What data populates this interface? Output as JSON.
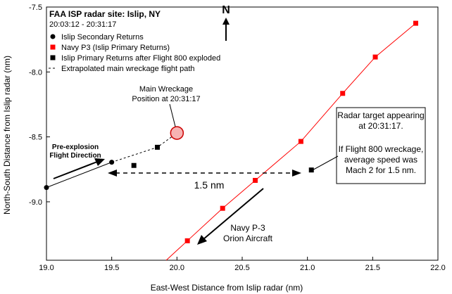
{
  "chart_data": {
    "type": "scatter",
    "title": "FAA ISP radar site: Islip, NY",
    "time_range": "20:03:12 - 20:31:17",
    "xlabel": "East-West Distance from Islip radar (nm)",
    "ylabel": "North-South Distance from Islip radar (nm)",
    "xlim": [
      19.0,
      22.0
    ],
    "ylim": [
      -9.45,
      -7.5
    ],
    "x_ticks": [
      "19.0",
      "19.5",
      "20.0",
      "20.5",
      "21.0",
      "21.5",
      "22.0"
    ],
    "y_ticks": [
      "-7.5",
      "-8.0",
      "-8.5",
      "-9.0"
    ],
    "grid": false,
    "legend_position": "top-left",
    "legend": [
      {
        "label": "Islip Secondary Returns",
        "marker": "circle",
        "color": "#000000"
      },
      {
        "label": "Navy P3 (Islip Primary Returns)",
        "marker": "square",
        "color": "#ff0000"
      },
      {
        "label": "Islip Primary Returns after Flight 800 exploded",
        "marker": "square",
        "color": "#000000"
      },
      {
        "label": "Extrapolated main wreckage flight path",
        "marker": "dashed-line",
        "color": "#000000"
      }
    ],
    "series": [
      {
        "name": "Islip Secondary Returns",
        "color": "#000000",
        "marker": "circle",
        "points": [
          [
            19.0,
            -8.89
          ],
          [
            19.5,
            -8.695
          ]
        ]
      },
      {
        "name": "Navy P3 (Islip Primary Returns)",
        "color": "#ff0000",
        "marker": "square",
        "line": true,
        "points": [
          [
            20.08,
            -9.3
          ],
          [
            20.35,
            -9.05
          ],
          [
            20.6,
            -8.835
          ],
          [
            20.95,
            -8.535
          ],
          [
            21.27,
            -8.165
          ],
          [
            21.52,
            -7.885
          ],
          [
            21.83,
            -7.625
          ]
        ]
      },
      {
        "name": "Islip Primary Returns after Flight 800 exploded",
        "color": "#000000",
        "marker": "square",
        "points": [
          [
            19.67,
            -8.72
          ],
          [
            19.85,
            -8.58
          ],
          [
            21.03,
            -8.755
          ]
        ]
      }
    ],
    "extrapolated_path": {
      "name": "Extrapolated main wreckage flight path",
      "points": [
        [
          19.5,
          -8.695
        ],
        [
          19.85,
          -8.58
        ],
        [
          20.0,
          -8.47
        ]
      ]
    },
    "main_wreckage": {
      "x": 20.0,
      "y": -8.47,
      "fill": "#f6b3b3",
      "stroke": "#cc0000"
    },
    "annotations": {
      "north": "N",
      "main_wreckage_label": [
        "Main Wreckage",
        "Position at 20:31:17"
      ],
      "pre_explosion": [
        "Pre-explosion",
        "Flight Direction"
      ],
      "distance_label": "1.5 nm",
      "navy_label": [
        "Navy P-3",
        "Orion Aircraft"
      ],
      "radar_box": [
        "Radar target appearing",
        "at 20:31:17.",
        "",
        "If Flight 800 wreckage,",
        "average speed was",
        "Mach 2 for 1.5 nm."
      ]
    }
  }
}
